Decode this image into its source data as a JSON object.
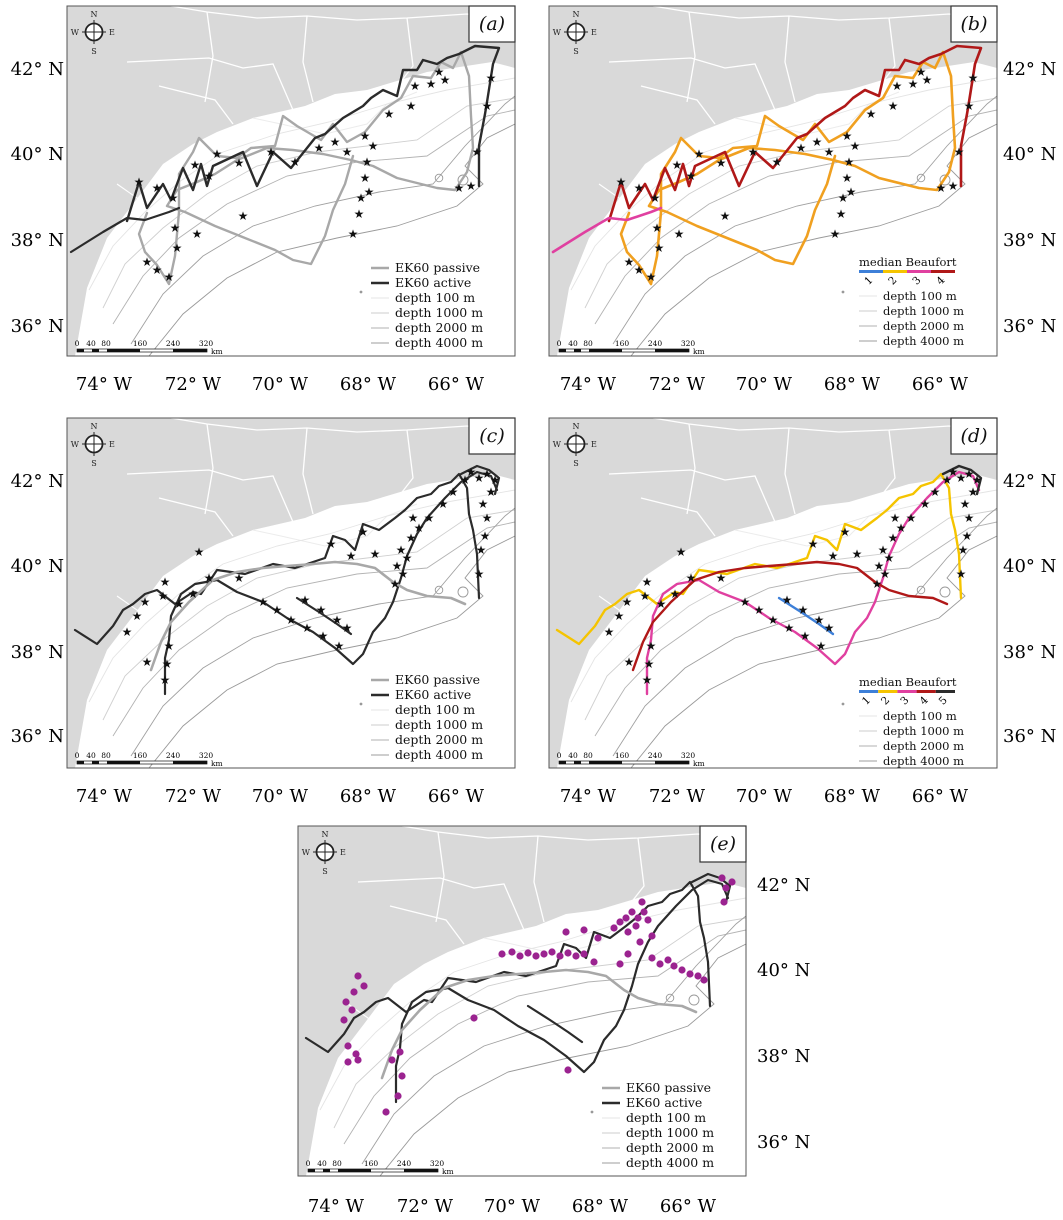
{
  "compass": {
    "n": "N",
    "s": "S",
    "e": "E",
    "w": "W"
  },
  "scale_bar": {
    "ticks": [
      "0",
      "40",
      "80",
      "160",
      "240",
      "320"
    ],
    "unit": "km"
  },
  "axes": {
    "lon_labels": [
      "74° W",
      "72° W",
      "70° W",
      "68° W",
      "66° W"
    ],
    "lat_labels": [
      "42° N",
      "40° N",
      "38° N",
      "36° N"
    ]
  },
  "legend_items": {
    "ek60_passive": "EK60 passive",
    "ek60_active": "EK60 active",
    "depth_100": "depth 100 m",
    "depth_1000": "depth 1000 m",
    "depth_2000": "depth 2000 m",
    "depth_4000": "depth 4000 m"
  },
  "beaufort": {
    "title": "median Beaufort",
    "b_levels": [
      "1",
      "2",
      "3",
      "4"
    ],
    "d_levels": [
      "1",
      "2",
      "3",
      "4",
      "5"
    ]
  },
  "colors": {
    "land": "#d9d9d9",
    "passive": "#a8a8a8",
    "active": "#2b2b2b",
    "beaufort_1": "#3d7fd8",
    "beaufort_2": "#f5c400",
    "beaufort_3": "#f0a020",
    "beaufort_4": "#e040a0",
    "beaufort_5": "#b01818",
    "sighting_dot": "#9b2390"
  },
  "panels": [
    {
      "id": "a",
      "label": "(a)",
      "track_style": "ek60",
      "legend": "ek60"
    },
    {
      "id": "b",
      "label": "(b)",
      "track_style": "beaufort4",
      "legend": "beaufort4"
    },
    {
      "id": "c",
      "label": "(c)",
      "track_style": "ek60",
      "legend": "ek60"
    },
    {
      "id": "d",
      "label": "(d)",
      "track_style": "beaufort5",
      "legend": "beaufort5"
    },
    {
      "id": "e",
      "label": "(e)",
      "track_style": "ek60",
      "legend": "ek60"
    }
  ]
}
